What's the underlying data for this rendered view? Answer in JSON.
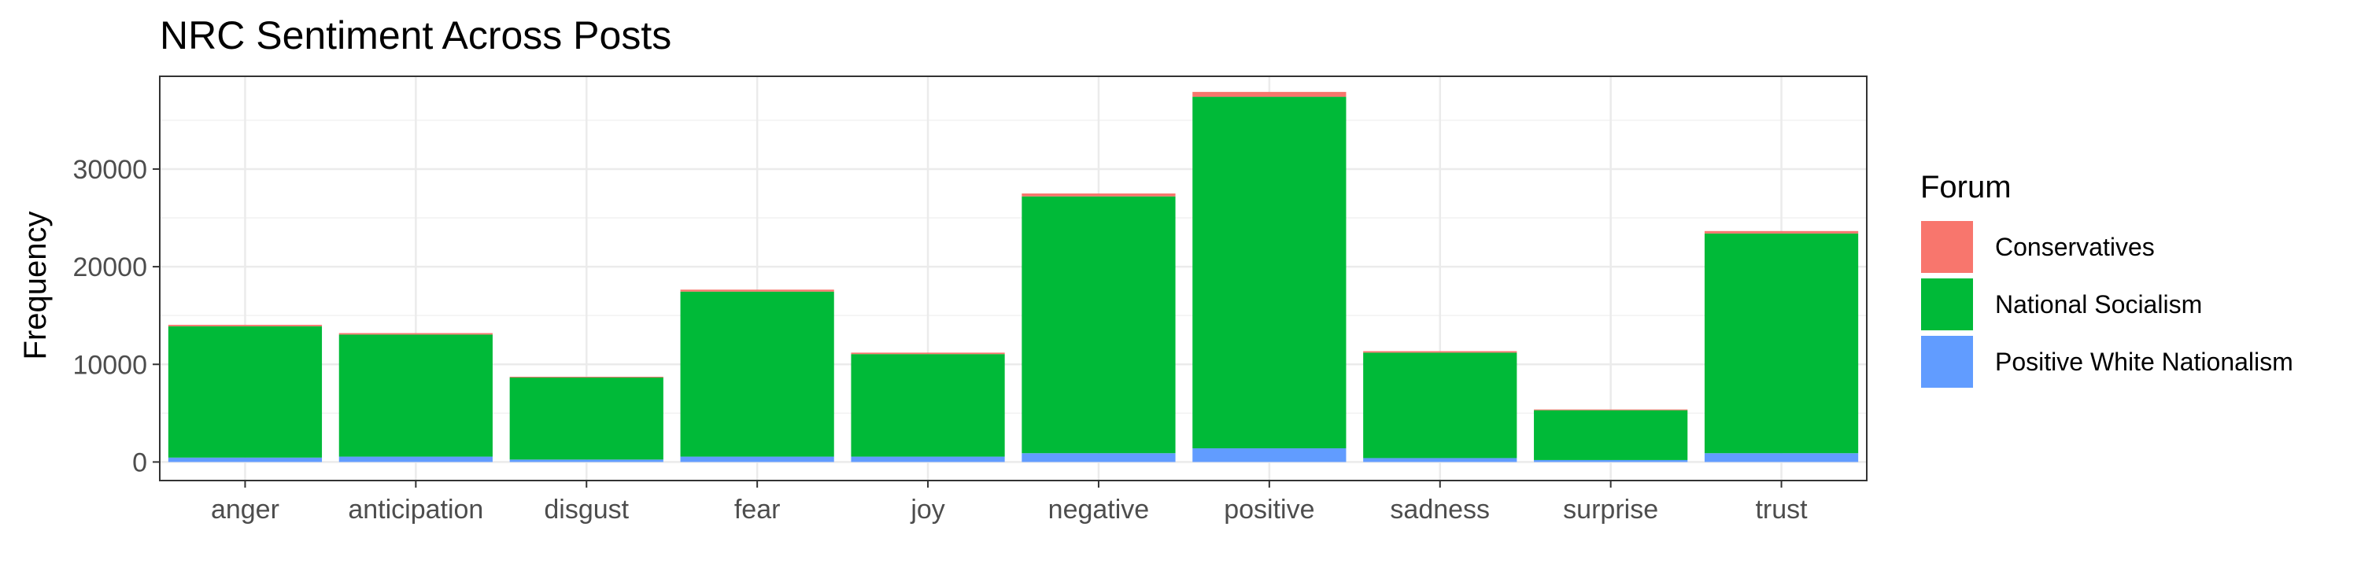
{
  "chart_data": {
    "type": "bar",
    "stacked": true,
    "title": "NRC Sentiment Across Posts",
    "xlabel": "",
    "ylabel": "Frequency",
    "categories": [
      "anger",
      "anticipation",
      "disgust",
      "fear",
      "joy",
      "negative",
      "positive",
      "sadness",
      "surprise",
      "trust"
    ],
    "series": [
      {
        "name": "Positive White Nationalism",
        "color": "#619CFF",
        "values": [
          450,
          550,
          250,
          550,
          550,
          900,
          1400,
          400,
          200,
          900
        ]
      },
      {
        "name": "National Socialism",
        "color": "#00BA38",
        "values": [
          13450,
          12500,
          8400,
          16900,
          10500,
          26300,
          36000,
          10800,
          5100,
          22500
        ]
      },
      {
        "name": "Conservatives",
        "color": "#F8766D",
        "values": [
          150,
          150,
          80,
          200,
          150,
          300,
          500,
          150,
          80,
          250
        ]
      }
    ],
    "ylim": [
      -1900,
      39500
    ],
    "yticks": [
      0,
      10000,
      20000,
      30000
    ],
    "grid": true,
    "legend_title": "Forum",
    "legend_items": [
      "Conservatives",
      "National Socialism",
      "Positive White Nationalism"
    ],
    "legend_position": "right"
  }
}
